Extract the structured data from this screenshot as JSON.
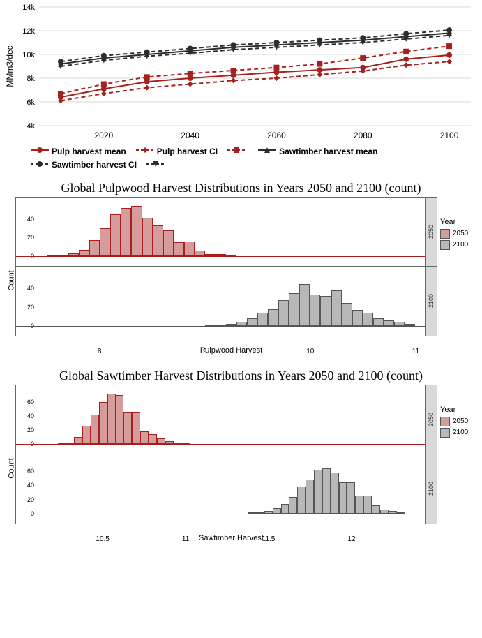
{
  "colors": {
    "pulp": "#a6201f",
    "saw": "#2d2d2d",
    "grid": "#d9d9d9",
    "bg": "#ffffff",
    "hist_2050_fill": "#d69c9c",
    "hist_2050_edge": "#a6201f",
    "hist_2100_fill": "#b8b8b8",
    "hist_2100_edge": "#555555",
    "strip_bg": "#d9d9d9"
  },
  "line_chart": {
    "ylabel": "MMm3/dec",
    "ylabel_fontsize": 12,
    "xlim": [
      2005,
      2105
    ],
    "ylim": [
      4000,
      14000
    ],
    "xticks": [
      2020,
      2040,
      2060,
      2080,
      2100
    ],
    "yticks": [
      4000,
      6000,
      8000,
      10000,
      12000,
      14000
    ],
    "ytick_labels": [
      "4k",
      "6k",
      "8k",
      "10k",
      "12k",
      "14k"
    ],
    "grid_color": "#d9d9d9",
    "x": [
      2010,
      2020,
      2030,
      2040,
      2050,
      2060,
      2070,
      2080,
      2090,
      2100
    ],
    "series": {
      "pulp_mean": {
        "color": "#a6201f",
        "dash": "solid",
        "marker": "circle",
        "y": [
          6400,
          7100,
          7700,
          8000,
          8250,
          8500,
          8700,
          8900,
          9600,
          9950
        ]
      },
      "pulp_upper": {
        "color": "#a6201f",
        "dash": "dash",
        "marker": "square",
        "y": [
          6700,
          7500,
          8100,
          8400,
          8650,
          8900,
          9200,
          9700,
          10250,
          10700
        ]
      },
      "pulp_lower": {
        "color": "#a6201f",
        "dash": "dash",
        "marker": "diamond",
        "y": [
          6100,
          6700,
          7200,
          7500,
          7800,
          8000,
          8300,
          8600,
          9100,
          9400
        ]
      },
      "saw_mean": {
        "color": "#2d2d2d",
        "dash": "solid",
        "marker": "triangle",
        "y": [
          9200,
          9700,
          10000,
          10300,
          10600,
          10800,
          11000,
          11200,
          11500,
          11800
        ]
      },
      "saw_upper": {
        "color": "#2d2d2d",
        "dash": "dash",
        "marker": "circle",
        "y": [
          9400,
          9900,
          10200,
          10500,
          10800,
          11000,
          11200,
          11400,
          11750,
          12050
        ]
      },
      "saw_lower": {
        "color": "#2d2d2d",
        "dash": "dash",
        "marker": "tridown",
        "y": [
          9000,
          9500,
          9850,
          10100,
          10400,
          10600,
          10800,
          11000,
          11300,
          11600
        ]
      }
    },
    "legend": [
      {
        "label": "Pulp harvest mean",
        "marker": "circle",
        "color": "#a6201f",
        "dash": "solid"
      },
      {
        "label": "Pulp harvest CI",
        "marker": "diamond",
        "color": "#a6201f",
        "dash": "dash"
      },
      {
        "label": "",
        "marker": "square",
        "color": "#a6201f",
        "dash": "dash"
      },
      {
        "label": "Sawtimber harvest mean",
        "marker": "triangle",
        "color": "#2d2d2d",
        "dash": "solid"
      },
      {
        "label": "Sawtimber harvest CI",
        "marker": "circle",
        "color": "#2d2d2d",
        "dash": "dash"
      },
      {
        "label": "",
        "marker": "tridown",
        "color": "#2d2d2d",
        "dash": "dash"
      }
    ]
  },
  "hist_pulp": {
    "title": "Global Pulpwood Harvest Distributions in Years 2050 and 2100 (count)",
    "xlabel": "Pulpwood Harvest",
    "ylabel": "Count",
    "xlim": [
      7.4,
      11.1
    ],
    "xticks": [
      8,
      9,
      10,
      11
    ],
    "ymax": 60,
    "yticks": [
      0,
      20,
      40
    ],
    "facets": [
      {
        "year": "2050",
        "color": "#d69c9c",
        "edge": "#a6201f",
        "bins": [
          [
            7.55,
            1
          ],
          [
            7.65,
            1
          ],
          [
            7.75,
            3
          ],
          [
            7.85,
            7
          ],
          [
            7.95,
            17
          ],
          [
            8.05,
            30
          ],
          [
            8.15,
            45
          ],
          [
            8.25,
            52
          ],
          [
            8.35,
            54
          ],
          [
            8.45,
            41
          ],
          [
            8.55,
            33
          ],
          [
            8.65,
            28
          ],
          [
            8.75,
            15
          ],
          [
            8.85,
            16
          ],
          [
            8.95,
            6
          ],
          [
            9.05,
            2
          ],
          [
            9.15,
            2
          ],
          [
            9.25,
            1
          ]
        ]
      },
      {
        "year": "2100",
        "color": "#b8b8b8",
        "edge": "#555555",
        "bins": [
          [
            9.05,
            1
          ],
          [
            9.15,
            1
          ],
          [
            9.25,
            2
          ],
          [
            9.35,
            4
          ],
          [
            9.45,
            8
          ],
          [
            9.55,
            14
          ],
          [
            9.65,
            18
          ],
          [
            9.75,
            27
          ],
          [
            9.85,
            35
          ],
          [
            9.95,
            44
          ],
          [
            10.05,
            33
          ],
          [
            10.15,
            32
          ],
          [
            10.25,
            38
          ],
          [
            10.35,
            24
          ],
          [
            10.45,
            17
          ],
          [
            10.55,
            14
          ],
          [
            10.65,
            8
          ],
          [
            10.75,
            6
          ],
          [
            10.85,
            4
          ],
          [
            10.95,
            2
          ]
        ]
      }
    ],
    "legend_title": "Year",
    "legend_items": [
      {
        "label": "2050",
        "color": "#d69c9c"
      },
      {
        "label": "2100",
        "color": "#b8b8b8"
      }
    ]
  },
  "hist_saw": {
    "title": "Global Sawtimber Harvest Distributions in Years 2050 and 2100 (count)",
    "xlabel": "Sawtimber Harvest",
    "ylabel": "Count",
    "xlim": [
      10.1,
      12.45
    ],
    "xticks": [
      10.5,
      11.0,
      11.5,
      12.0
    ],
    "ymax": 80,
    "yticks": [
      0,
      20,
      40,
      60
    ],
    "facets": [
      {
        "year": "2050",
        "color": "#d69c9c",
        "edge": "#a6201f",
        "bins": [
          [
            10.25,
            2
          ],
          [
            10.3,
            2
          ],
          [
            10.35,
            10
          ],
          [
            10.4,
            26
          ],
          [
            10.45,
            42
          ],
          [
            10.5,
            60
          ],
          [
            10.55,
            72
          ],
          [
            10.6,
            70
          ],
          [
            10.65,
            46
          ],
          [
            10.7,
            46
          ],
          [
            10.75,
            18
          ],
          [
            10.8,
            14
          ],
          [
            10.85,
            8
          ],
          [
            10.9,
            4
          ],
          [
            10.95,
            2
          ],
          [
            11.0,
            2
          ]
        ]
      },
      {
        "year": "2100",
        "color": "#b8b8b8",
        "edge": "#555555",
        "bins": [
          [
            11.4,
            1
          ],
          [
            11.45,
            2
          ],
          [
            11.5,
            4
          ],
          [
            11.55,
            8
          ],
          [
            11.6,
            14
          ],
          [
            11.65,
            24
          ],
          [
            11.7,
            38
          ],
          [
            11.75,
            48
          ],
          [
            11.8,
            62
          ],
          [
            11.85,
            64
          ],
          [
            11.9,
            58
          ],
          [
            11.95,
            44
          ],
          [
            12.0,
            44
          ],
          [
            12.05,
            26
          ],
          [
            12.1,
            26
          ],
          [
            12.15,
            12
          ],
          [
            12.2,
            6
          ],
          [
            12.25,
            4
          ],
          [
            12.3,
            2
          ]
        ]
      }
    ],
    "legend_title": "Year",
    "legend_items": [
      {
        "label": "2050",
        "color": "#d69c9c"
      },
      {
        "label": "2100",
        "color": "#b8b8b8"
      }
    ]
  }
}
